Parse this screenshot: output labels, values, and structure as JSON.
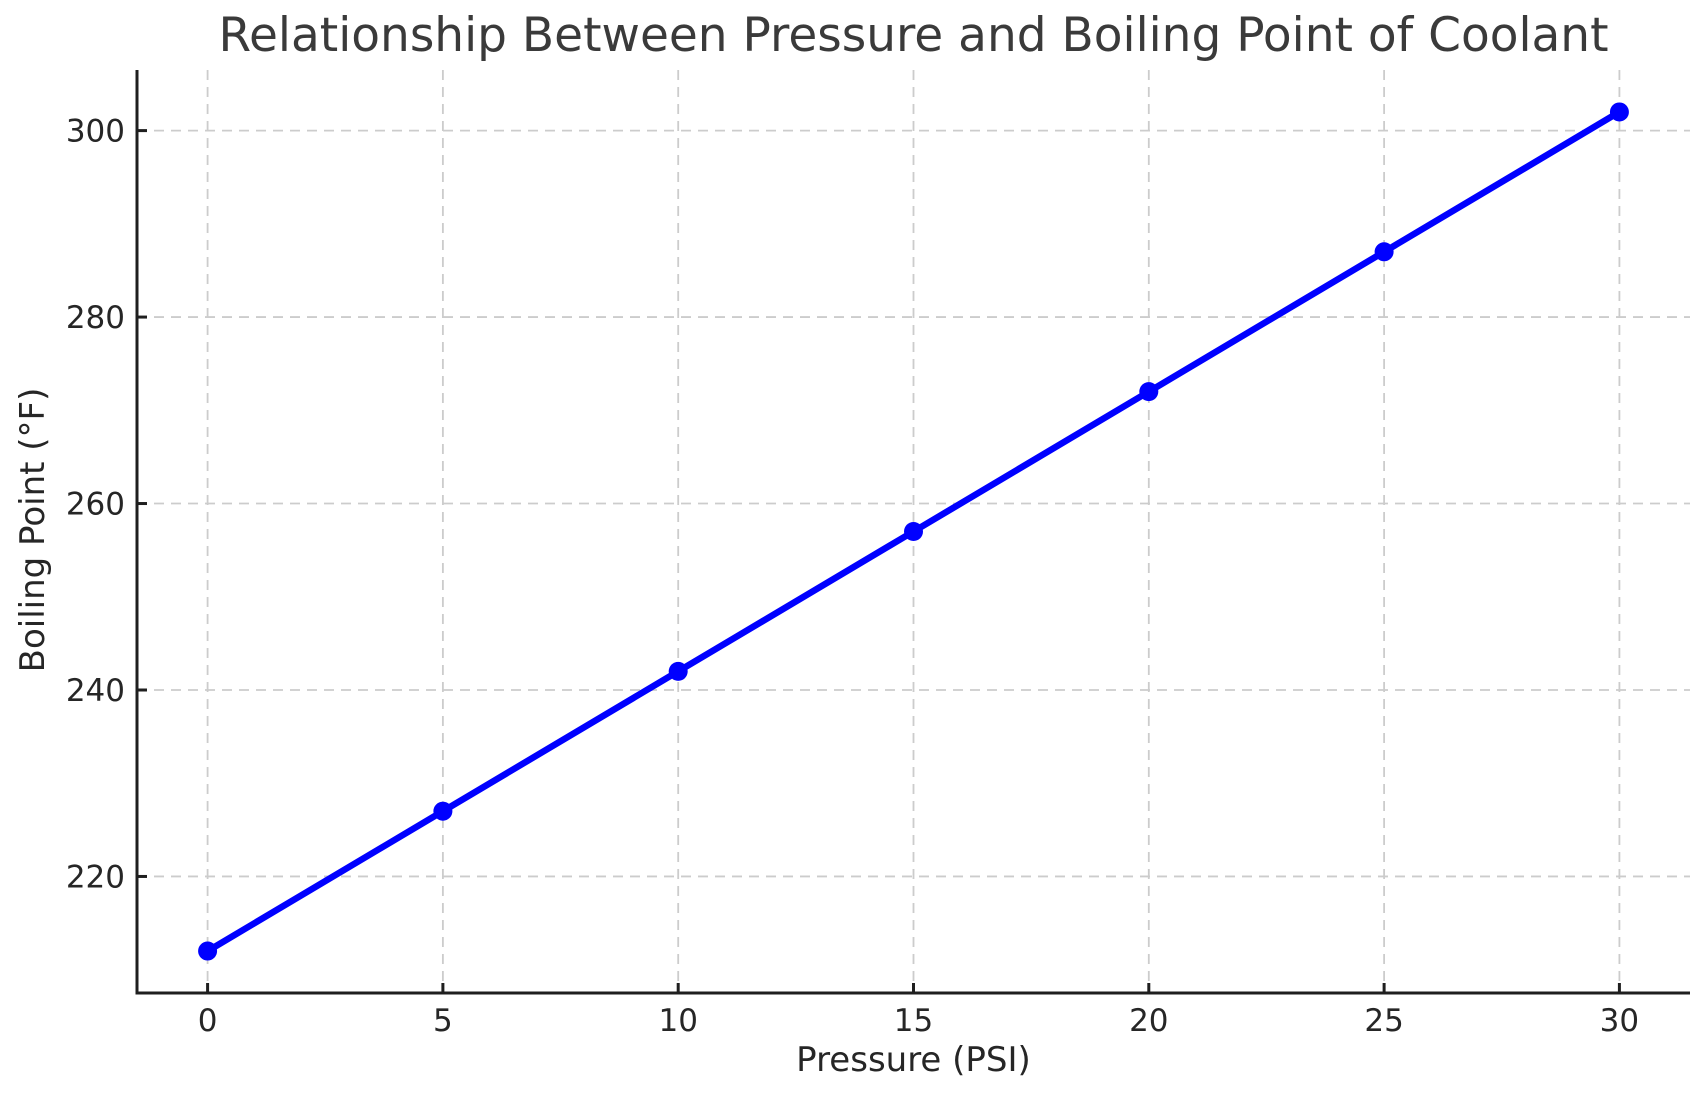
{
  "chart_data": {
    "type": "line",
    "title": "Relationship Between Pressure and Boiling Point of Coolant",
    "xlabel": "Pressure (PSI)",
    "ylabel": "Boiling Point (°F)",
    "x": [
      0,
      5,
      10,
      15,
      20,
      25,
      30
    ],
    "y": [
      212,
      227,
      242,
      257,
      272,
      287,
      302
    ],
    "x_ticks": [
      0,
      5,
      10,
      15,
      20,
      25,
      30
    ],
    "x_tick_labels": [
      "0",
      "5",
      "10",
      "15",
      "20",
      "25",
      "30"
    ],
    "y_ticks": [
      220,
      240,
      260,
      280,
      300
    ],
    "y_tick_labels": [
      "220",
      "240",
      "260",
      "280",
      "300"
    ],
    "xlim": [
      -1.5,
      31.5
    ],
    "ylim": [
      207.5,
      306.5
    ],
    "grid": true,
    "grid_style": "dashed",
    "legend_position": "none",
    "colors": {
      "line": "#0000ff",
      "marker": "#0000ff",
      "grid": "#cccccc",
      "spine": "#1f1f1f",
      "tick": "#1f1f1f",
      "tick_label": "#262626",
      "title": "#3a3a3a",
      "background": "#ffffff"
    }
  }
}
